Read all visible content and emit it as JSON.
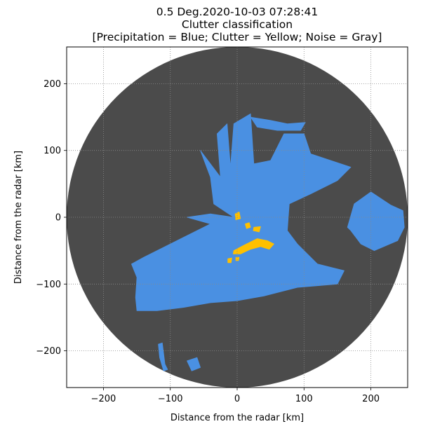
{
  "chart_data": {
    "type": "heatmap",
    "title_lines": [
      "0.5 Deg.2020-10-03 07:28:41",
      "Clutter classification",
      "[Precipitation = Blue; Clutter = Yellow; Noise = Gray]"
    ],
    "xlabel": "Distance from the radar [km]",
    "ylabel": "Distance from the radar [km]",
    "xlim": [
      -255,
      255
    ],
    "ylim": [
      -255,
      255
    ],
    "x_ticks": [
      -200,
      -100,
      0,
      100,
      200
    ],
    "y_ticks": [
      -200,
      -100,
      0,
      100,
      200
    ],
    "x_tick_labels": [
      "−200",
      "−100",
      "0",
      "100",
      "200"
    ],
    "y_tick_labels": [
      "−200",
      "−100",
      "0",
      "100",
      "200"
    ],
    "grid": true,
    "radar_range_km": 255,
    "classes": [
      {
        "name": "Precipitation",
        "color": "#4a90e2"
      },
      {
        "name": "Clutter",
        "color": "#ffc000"
      },
      {
        "name": "Noise",
        "color": "#4b4b4b"
      }
    ],
    "precipitation_regions": [
      {
        "name": "main-band",
        "points": [
          [
            -5,
            0
          ],
          [
            -40,
            5
          ],
          [
            -75,
            0
          ],
          [
            -40,
            -10
          ],
          [
            -90,
            -35
          ],
          [
            -140,
            -60
          ],
          [
            -158,
            -70
          ],
          [
            -150,
            -90
          ],
          [
            -152,
            -120
          ],
          [
            -150,
            -140
          ],
          [
            -120,
            -140
          ],
          [
            -80,
            -135
          ],
          [
            -40,
            -128
          ],
          [
            0,
            -125
          ],
          [
            40,
            -118
          ],
          [
            90,
            -105
          ],
          [
            150,
            -100
          ],
          [
            160,
            -80
          ],
          [
            120,
            -70
          ],
          [
            90,
            -40
          ],
          [
            75,
            -20
          ],
          [
            78,
            20
          ],
          [
            110,
            35
          ],
          [
            150,
            55
          ],
          [
            170,
            75
          ],
          [
            140,
            85
          ],
          [
            110,
            95
          ],
          [
            100,
            125
          ],
          [
            70,
            125
          ],
          [
            50,
            85
          ],
          [
            25,
            80
          ],
          [
            20,
            155
          ],
          [
            -5,
            140
          ],
          [
            -10,
            75
          ],
          [
            -15,
            140
          ],
          [
            -30,
            125
          ],
          [
            -25,
            60
          ],
          [
            -55,
            100
          ],
          [
            -40,
            60
          ],
          [
            -35,
            20
          ]
        ]
      },
      {
        "name": "east-cluster",
        "points": [
          [
            170,
            -20
          ],
          [
            165,
            -15
          ],
          [
            175,
            20
          ],
          [
            200,
            38
          ],
          [
            230,
            18
          ],
          [
            248,
            10
          ],
          [
            250,
            -15
          ],
          [
            240,
            -35
          ],
          [
            205,
            -50
          ],
          [
            185,
            -40
          ]
        ]
      },
      {
        "name": "north-fingers",
        "points": [
          [
            20,
            150
          ],
          [
            30,
            135
          ],
          [
            60,
            130
          ],
          [
            95,
            130
          ],
          [
            102,
            142
          ],
          [
            75,
            140
          ],
          [
            50,
            145
          ]
        ]
      },
      {
        "name": "south-patch",
        "points": [
          [
            -118,
            -190
          ],
          [
            -112,
            -188
          ],
          [
            -108,
            -220
          ],
          [
            -104,
            -228
          ],
          [
            -110,
            -230
          ],
          [
            -116,
            -210
          ]
        ]
      },
      {
        "name": "south-patch-2",
        "points": [
          [
            -75,
            -215
          ],
          [
            -60,
            -210
          ],
          [
            -55,
            -225
          ],
          [
            -68,
            -230
          ]
        ]
      }
    ],
    "clutter_regions": [
      {
        "name": "center",
        "points": [
          [
            -3,
            5
          ],
          [
            3,
            8
          ],
          [
            5,
            -2
          ],
          [
            -2,
            -4
          ]
        ]
      },
      {
        "name": "center-2",
        "points": [
          [
            12,
            -10
          ],
          [
            18,
            -8
          ],
          [
            20,
            -15
          ],
          [
            14,
            -17
          ]
        ]
      },
      {
        "name": "center-3",
        "points": [
          [
            25,
            -15
          ],
          [
            35,
            -14
          ],
          [
            33,
            -22
          ],
          [
            24,
            -20
          ]
        ]
      },
      {
        "name": "southeast-main",
        "points": [
          [
            -5,
            -50
          ],
          [
            10,
            -42
          ],
          [
            30,
            -32
          ],
          [
            45,
            -35
          ],
          [
            55,
            -40
          ],
          [
            48,
            -48
          ],
          [
            35,
            -44
          ],
          [
            20,
            -48
          ],
          [
            5,
            -55
          ],
          [
            -6,
            -55
          ]
        ]
      },
      {
        "name": "speck-1",
        "points": [
          [
            -14,
            -62
          ],
          [
            -8,
            -61
          ],
          [
            -9,
            -68
          ],
          [
            -14,
            -68
          ]
        ]
      },
      {
        "name": "speck-2",
        "points": [
          [
            -2,
            -60
          ],
          [
            3,
            -60
          ],
          [
            2,
            -65
          ],
          [
            -2,
            -65
          ]
        ]
      }
    ]
  }
}
